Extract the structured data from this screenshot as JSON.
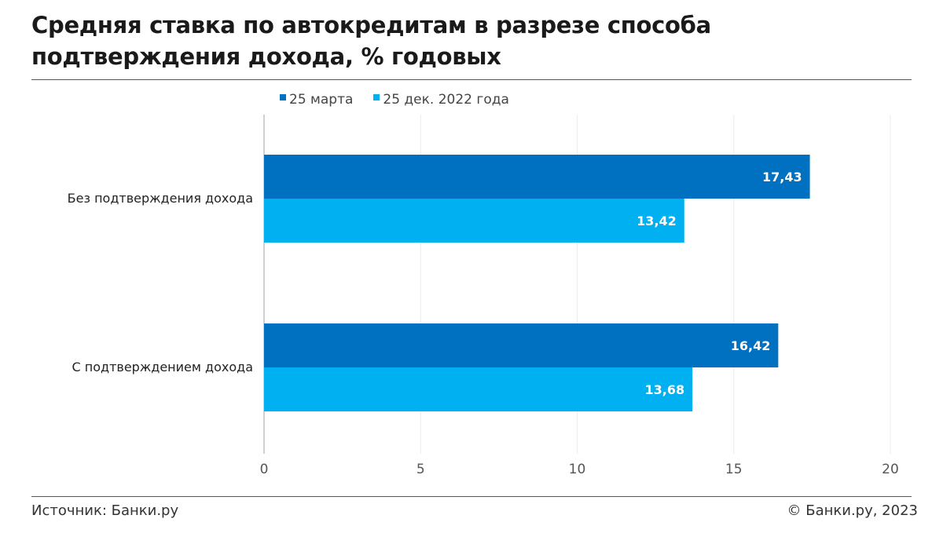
{
  "title_line1": "Средняя ставка по автокредитам в разрезе способа",
  "title_line2": "подтверждения дохода, % годовых",
  "source": "Источник: Банки.ру",
  "copyright": "© Банки.ру, 2023",
  "chart_data": {
    "type": "bar",
    "orientation": "horizontal",
    "title": "Средняя ставка по автокредитам в разрезе способа подтверждения дохода, % годовых",
    "categories": [
      "Без подтверждения дохода",
      "С подтверждением дохода"
    ],
    "series": [
      {
        "name": "25 марта",
        "color": "#0070c0",
        "values": [
          17.43,
          16.42
        ],
        "labels": [
          "17,43",
          "16,42"
        ]
      },
      {
        "name": "25 дек. 2022 года",
        "color": "#00b0f0",
        "values": [
          13.42,
          13.68
        ],
        "labels": [
          "13,42",
          "13,68"
        ]
      }
    ],
    "xlim": [
      0,
      20
    ],
    "xticks": [
      "0",
      "5",
      "10",
      "15",
      "20"
    ],
    "grid": true,
    "legend": "top"
  }
}
